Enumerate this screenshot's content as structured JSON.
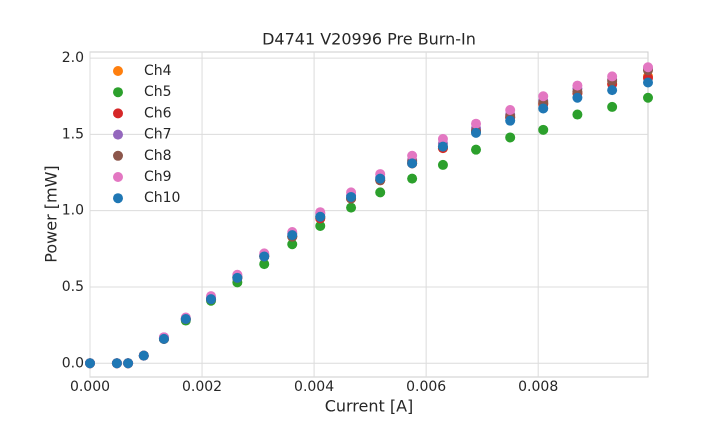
{
  "chart_data": {
    "type": "scatter",
    "title": "D4741 V20996 Pre Burn-In",
    "x_label": "Current [A]",
    "y_label": "Power [mW]",
    "x": [
      0,
      0.00048,
      0.00068,
      0.00096,
      0.00132,
      0.00171,
      0.00216,
      0.00263,
      0.00311,
      0.00361,
      0.00411,
      0.00466,
      0.00518,
      0.00575,
      0.0063,
      0.00689,
      0.0075,
      0.00809,
      0.0087,
      0.00932,
      0.00996
    ],
    "series": [
      {
        "name": "Ch4",
        "color": "#ff7f0e",
        "values": [
          0,
          0,
          0,
          0.05,
          0.16,
          0.29,
          0.42,
          0.56,
          0.7,
          0.83,
          0.95,
          1.08,
          1.2,
          1.31,
          1.41,
          1.52,
          1.61,
          1.7,
          1.77,
          1.83,
          1.88
        ]
      },
      {
        "name": "Ch5",
        "color": "#2ca02c",
        "values": [
          0,
          0,
          0,
          0.05,
          0.16,
          0.28,
          0.41,
          0.53,
          0.65,
          0.78,
          0.9,
          1.02,
          1.12,
          1.21,
          1.3,
          1.4,
          1.48,
          1.53,
          1.63,
          1.68,
          1.74
        ]
      },
      {
        "name": "Ch6",
        "color": "#d62728",
        "values": [
          0,
          0,
          0,
          0.05,
          0.16,
          0.29,
          0.42,
          0.56,
          0.7,
          0.83,
          0.95,
          1.08,
          1.2,
          1.31,
          1.41,
          1.52,
          1.61,
          1.7,
          1.77,
          1.83,
          1.87
        ]
      },
      {
        "name": "Ch7",
        "color": "#9467bd",
        "values": [
          0,
          0,
          0,
          0.05,
          0.17,
          0.29,
          0.43,
          0.57,
          0.71,
          0.85,
          0.98,
          1.1,
          1.22,
          1.33,
          1.44,
          1.54,
          1.63,
          1.72,
          1.8,
          1.86,
          1.93
        ]
      },
      {
        "name": "Ch8",
        "color": "#8c564b",
        "values": [
          0,
          0,
          0,
          0.05,
          0.16,
          0.29,
          0.42,
          0.56,
          0.7,
          0.83,
          0.96,
          1.08,
          1.2,
          1.32,
          1.42,
          1.52,
          1.62,
          1.71,
          1.78,
          1.85,
          1.92
        ]
      },
      {
        "name": "Ch9",
        "color": "#e377c2",
        "values": [
          0,
          0,
          0,
          0.05,
          0.17,
          0.3,
          0.44,
          0.58,
          0.72,
          0.86,
          0.99,
          1.12,
          1.24,
          1.36,
          1.47,
          1.57,
          1.66,
          1.75,
          1.82,
          1.88,
          1.94
        ]
      },
      {
        "name": "Ch10",
        "color": "#1f77b4",
        "values": [
          0,
          0,
          0,
          0.05,
          0.16,
          0.29,
          0.42,
          0.56,
          0.7,
          0.84,
          0.96,
          1.09,
          1.21,
          1.31,
          1.42,
          1.51,
          1.59,
          1.67,
          1.74,
          1.79,
          1.84
        ]
      }
    ],
    "xlim": [
      0,
      0.00996
    ],
    "ylim": [
      -0.09,
      2.04
    ],
    "xticks": [
      {
        "value": 0,
        "label": "0.000"
      },
      {
        "value": 0.002,
        "label": "0.002"
      },
      {
        "value": 0.004,
        "label": "0.004"
      },
      {
        "value": 0.006,
        "label": "0.006"
      },
      {
        "value": 0.008,
        "label": "0.008"
      }
    ],
    "yticks": [
      {
        "value": 0,
        "label": "0.0"
      },
      {
        "value": 0.5,
        "label": "0.5"
      },
      {
        "value": 1,
        "label": "1.0"
      },
      {
        "value": 1.5,
        "label": "1.5"
      },
      {
        "value": 2,
        "label": "2.0"
      }
    ],
    "grid": true,
    "legend": "upper-left"
  }
}
